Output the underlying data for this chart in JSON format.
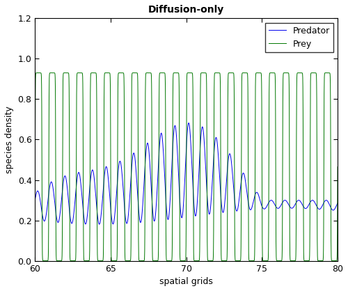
{
  "title": "Diffusion-only",
  "xlabel": "spatial grids",
  "ylabel": "species density",
  "xlim": [
    60,
    80
  ],
  "ylim": [
    0,
    1.2
  ],
  "xticks": [
    60,
    65,
    70,
    75,
    80
  ],
  "yticks": [
    0,
    0.2,
    0.4,
    0.6,
    0.8,
    1.0,
    1.2
  ],
  "predator_color": "#0000EE",
  "prey_color": "#007700",
  "legend_labels": [
    "Predator",
    "Prey"
  ],
  "title_fontsize": 10,
  "axis_fontsize": 9,
  "background_color": "#ffffff",
  "figsize": [
    5.0,
    4.18
  ],
  "dpi": 100
}
